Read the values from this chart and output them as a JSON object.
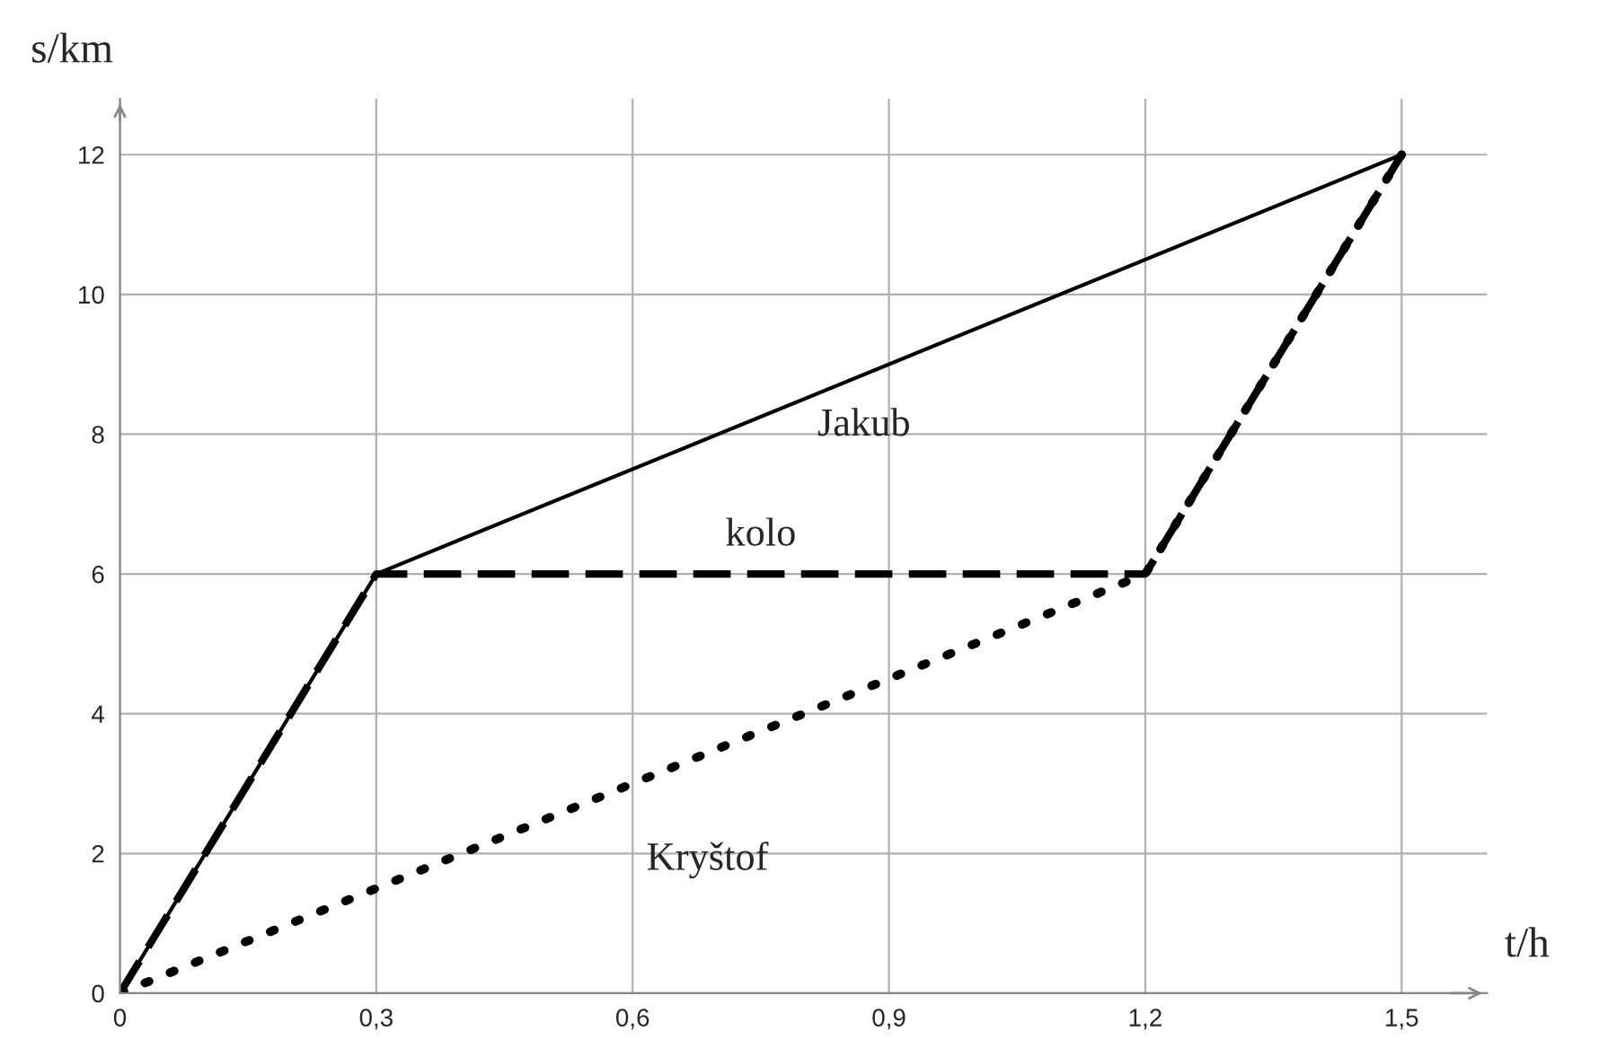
{
  "chart_data": {
    "type": "line",
    "xlabel": "t/h",
    "ylabel": "s/km",
    "xlim": [
      0,
      1.6
    ],
    "ylim": [
      0,
      12.8
    ],
    "xticks": [
      0,
      {
        "value": 0.3,
        "label": "0,3"
      },
      {
        "value": 0.6,
        "label": "0,6"
      },
      {
        "value": 0.9,
        "label": "0,9"
      },
      {
        "value": 1.2,
        "label": "1,2"
      },
      {
        "value": 1.5,
        "label": "1,5"
      }
    ],
    "yticks": [
      0,
      2,
      4,
      6,
      8,
      10,
      12
    ],
    "grid": true,
    "series": [
      {
        "name": "Jakub",
        "color": "#000000",
        "line_style": "solid",
        "x": [
          0,
          0.3,
          1.5
        ],
        "values": [
          0,
          6,
          12
        ]
      },
      {
        "name": "kolo",
        "color": "#000000",
        "line_style": "dashed",
        "x": [
          0,
          0.3,
          1.2,
          1.5
        ],
        "values": [
          0,
          6,
          6,
          12
        ]
      },
      {
        "name": "Kryštof",
        "color": "#000000",
        "line_style": "dotted",
        "x": [
          0,
          1.2,
          1.5
        ],
        "values": [
          0,
          6,
          12
        ]
      }
    ]
  }
}
